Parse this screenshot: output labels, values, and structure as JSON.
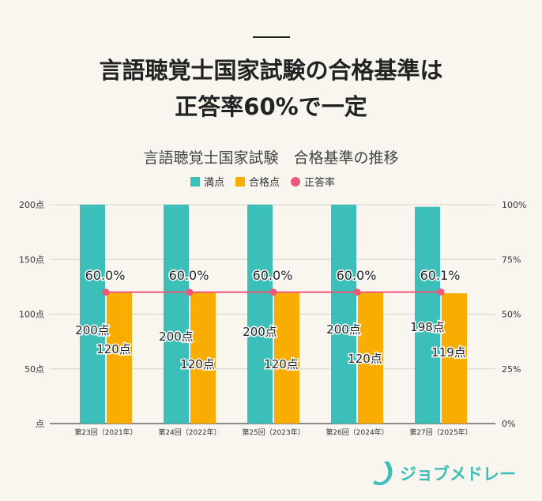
{
  "headline": {
    "line1": "言語聴覚士国家試験の合格基準は",
    "line2": "正答率60%で一定"
  },
  "logo": {
    "text": "ジョブメドレー"
  },
  "chart_data": {
    "type": "bar",
    "title": "言語聴覚士国家試験　合格基準の推移",
    "categories": [
      "第23回（2021年）",
      "第24回（2022年）",
      "第25回（2023年）",
      "第26回（2024年）",
      "第27回（2025年）"
    ],
    "series": [
      {
        "name": "満点",
        "type": "bar",
        "axis": "left",
        "color": "#3bbfb8",
        "values": [
          200,
          200,
          200,
          200,
          198
        ],
        "labels": [
          "200点",
          "200点",
          "200点",
          "200点",
          "198点"
        ]
      },
      {
        "name": "合格点",
        "type": "bar",
        "axis": "left",
        "color": "#f9ad00",
        "values": [
          120,
          120,
          120,
          120,
          119
        ],
        "labels": [
          "120点",
          "120点",
          "120点",
          "120点",
          "119点"
        ]
      },
      {
        "name": "正答率",
        "type": "line",
        "axis": "right",
        "color": "#f0577e",
        "values": [
          60.0,
          60.0,
          60.0,
          60.0,
          60.1
        ],
        "labels": [
          "60.0%",
          "60.0%",
          "60.0%",
          "60.0%",
          "60.1%"
        ]
      }
    ],
    "y_left": {
      "ylim": [
        0,
        200
      ],
      "ticks": [
        "点",
        "50点",
        "100点",
        "150点",
        "200点"
      ]
    },
    "y_right": {
      "ylim": [
        0,
        100
      ],
      "ticks": [
        "0%",
        "25%",
        "50%",
        "75%",
        "100%"
      ]
    },
    "grid": true,
    "legend": "top"
  }
}
